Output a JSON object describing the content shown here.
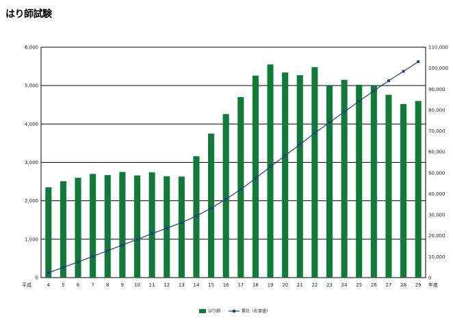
{
  "page": {
    "title": "はり師試験"
  },
  "chart_data": {
    "type": "bar",
    "title": "はり師試験",
    "x_prefix_label": "平成",
    "x_suffix_label": "年度",
    "categories": [
      "4",
      "5",
      "6",
      "7",
      "8",
      "9",
      "10",
      "11",
      "12",
      "13",
      "14",
      "15",
      "16",
      "17",
      "18",
      "19",
      "20",
      "21",
      "22",
      "23",
      "24",
      "25",
      "26",
      "27",
      "28",
      "29"
    ],
    "left_axis": {
      "ylim": [
        0,
        6000
      ],
      "ticks": [
        "0",
        "1,000",
        "2,000",
        "3,000",
        "4,000",
        "5,000",
        "6,000"
      ]
    },
    "right_axis": {
      "ylim": [
        0,
        110000
      ],
      "ticks": [
        "0",
        "10,000",
        "20,000",
        "30,000",
        "40,000",
        "50,000",
        "60,000",
        "70,000",
        "80,000",
        "90,000",
        "100,000",
        "110,000"
      ]
    },
    "series": [
      {
        "name": "はり師",
        "type": "bar",
        "axis": "left",
        "color": "#0f7a3a",
        "values": [
          2350,
          2510,
          2600,
          2700,
          2670,
          2750,
          2660,
          2740,
          2640,
          2630,
          3160,
          3750,
          4260,
          4700,
          5260,
          5550,
          5340,
          5270,
          5480,
          5000,
          5150,
          5020,
          5000,
          4760,
          4520,
          4600
        ]
      },
      {
        "name": "累計（右目盛）",
        "type": "line",
        "axis": "right",
        "color": "#1f3f7a",
        "values": [
          2350,
          4860,
          7460,
          10160,
          12830,
          15580,
          18240,
          20980,
          23620,
          26250,
          29410,
          33160,
          37420,
          42120,
          47380,
          52930,
          58270,
          63540,
          69020,
          74020,
          79170,
          84190,
          89190,
          93950,
          98470,
          103070
        ]
      }
    ],
    "legend_position": "bottom-center",
    "grid": true
  }
}
